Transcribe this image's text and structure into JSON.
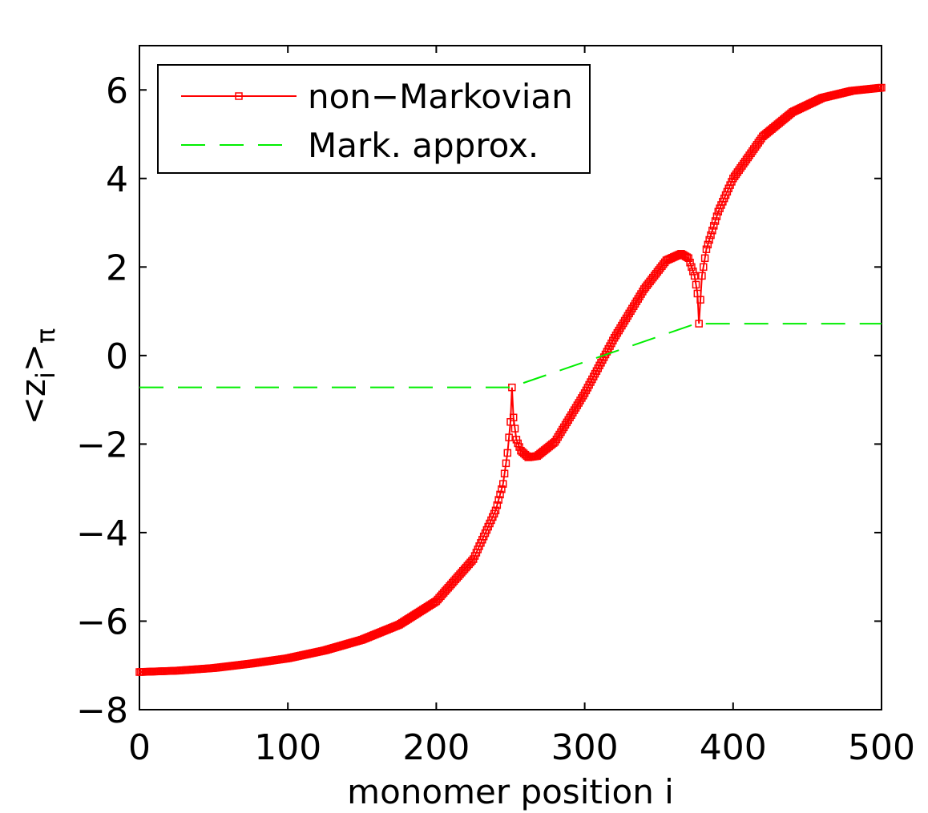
{
  "chart_data": {
    "type": "line",
    "title": "",
    "xlabel": "monomer position i",
    "ylabel": {
      "main": "<z",
      "sub": "i",
      "close": ">",
      "sub2": "π"
    },
    "xlim": [
      0,
      500
    ],
    "ylim": [
      -8,
      7
    ],
    "xticks": [
      0,
      100,
      200,
      300,
      400,
      500
    ],
    "yticks": [
      -8,
      -6,
      -4,
      -2,
      0,
      2,
      4,
      6
    ],
    "xtick_labels": [
      "0",
      "100",
      "200",
      "300",
      "400",
      "500"
    ],
    "ytick_labels": [
      "−8",
      "−6",
      "−4",
      "−2",
      "0",
      "2",
      "4",
      "6"
    ],
    "grid": false,
    "legend_position": "top-left",
    "series": [
      {
        "name": "non−Markovian",
        "color": "#ff0000",
        "style": "solid",
        "marker": "square",
        "points": [
          [
            0,
            -7.15
          ],
          [
            25,
            -7.12
          ],
          [
            50,
            -7.06
          ],
          [
            75,
            -6.96
          ],
          [
            100,
            -6.84
          ],
          [
            125,
            -6.66
          ],
          [
            150,
            -6.42
          ],
          [
            175,
            -6.08
          ],
          [
            200,
            -5.55
          ],
          [
            225,
            -4.6
          ],
          [
            240,
            -3.5
          ],
          [
            245,
            -2.9
          ],
          [
            248,
            -2.2
          ],
          [
            250,
            -1.5
          ],
          [
            251,
            -0.72
          ],
          [
            252,
            -1.4
          ],
          [
            254,
            -1.9
          ],
          [
            257,
            -2.15
          ],
          [
            262,
            -2.3
          ],
          [
            268,
            -2.27
          ],
          [
            280,
            -1.95
          ],
          [
            300,
            -0.85
          ],
          [
            320,
            0.4
          ],
          [
            340,
            1.5
          ],
          [
            355,
            2.15
          ],
          [
            365,
            2.3
          ],
          [
            370,
            2.2
          ],
          [
            374,
            1.8
          ],
          [
            376,
            1.4
          ],
          [
            377,
            0.72
          ],
          [
            379,
            1.8
          ],
          [
            382,
            2.4
          ],
          [
            390,
            3.25
          ],
          [
            400,
            4.0
          ],
          [
            420,
            4.95
          ],
          [
            440,
            5.5
          ],
          [
            460,
            5.82
          ],
          [
            480,
            5.98
          ],
          [
            500,
            6.05
          ]
        ]
      },
      {
        "name": "Mark. approx.",
        "color": "#00ee00",
        "style": "dashed",
        "marker": "none",
        "points": [
          [
            0,
            -0.72
          ],
          [
            250,
            -0.72
          ],
          [
            375,
            0.72
          ],
          [
            500,
            0.72
          ]
        ]
      }
    ]
  }
}
